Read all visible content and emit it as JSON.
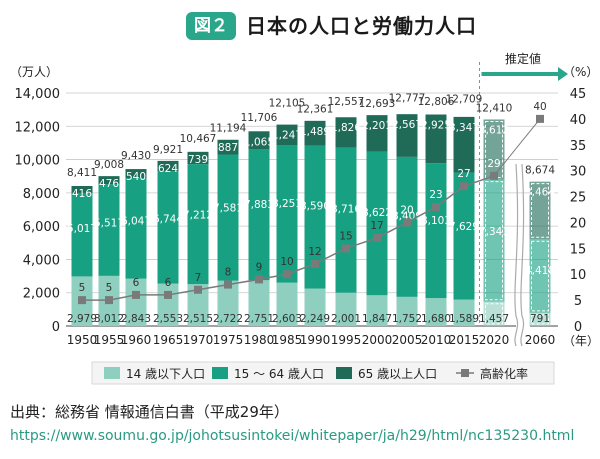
{
  "figure": {
    "badge": "図２",
    "title": "日本の人口と労働力人口"
  },
  "source": {
    "text": "出典：総務省 情報通信白書（平成29年）",
    "url": "https://www.soumu.go.jp/johotsusintokei/whitepaper/ja/h29/html/nc135230.html"
  },
  "colors": {
    "age0_14": "#8ecfbf",
    "age15_64": "#18a082",
    "age65plus": "#1f6b58",
    "aging_rate": "#7a7a7a",
    "estimate_arrow": "#2aa68a",
    "estimate_line": "#36b89b"
  },
  "chart_data": {
    "type": "bar",
    "stacked": true,
    "categories": [
      "1950",
      "1955",
      "1960",
      "1965",
      "1970",
      "1975",
      "1980",
      "1985",
      "1990",
      "1995",
      "2000",
      "2005",
      "2010",
      "2015",
      "2020",
      "2060"
    ],
    "left_axis": {
      "unit_label": "（万人）",
      "ylim": [
        0,
        14000
      ],
      "ticks": [
        "0",
        "2,000",
        "4,000",
        "6,000",
        "8,000",
        "10,000",
        "12,000",
        "14,000"
      ]
    },
    "right_axis": {
      "unit_label": "（%）",
      "ylim": [
        0,
        45
      ],
      "ticks": [
        "0",
        "5",
        "10",
        "15",
        "20",
        "25",
        "30",
        "35",
        "40",
        "45"
      ]
    },
    "x_unit_label": "（年）",
    "estimate_label": "推定値",
    "estimate_categories": [
      "2020",
      "2060"
    ],
    "series": [
      {
        "name": "14 歳以下人口",
        "values": [
          2979,
          3012,
          2843,
          2553,
          2515,
          2722,
          2751,
          2603,
          2249,
          2001,
          1847,
          1752,
          1680,
          1589,
          1457,
          791
        ],
        "labels": [
          "2,979",
          "3,012",
          "2,843",
          "2,553",
          "2,515",
          "2,722",
          "2,751",
          "2,603",
          "2,249",
          "2,001",
          "1,847",
          "1,752",
          "1,680",
          "1,589",
          "1,457",
          "791"
        ]
      },
      {
        "name": "15 ～ 64 歳人口",
        "values": [
          5017,
          5517,
          6047,
          6744,
          7212,
          7581,
          7883,
          8251,
          8590,
          8716,
          8622,
          8409,
          8103,
          7629,
          7341,
          4418
        ],
        "labels": [
          "5,017",
          "5,517",
          "6,047",
          "6,744",
          "7,212",
          "7,581",
          "7,883",
          "8,251",
          "8,590",
          "8,716",
          "8,622",
          "8,409",
          "8,103",
          "7,629",
          "7,341",
          "4,418"
        ]
      },
      {
        "name": "65 歳以上人口",
        "values": [
          416,
          476,
          540,
          624,
          739,
          887,
          1065,
          1247,
          1489,
          1826,
          2201,
          2567,
          2925,
          3347,
          3612,
          3464
        ],
        "labels": [
          "416",
          "476",
          "540",
          "624",
          "739",
          "887",
          "1,065",
          "1,247",
          "1,489",
          "1,826",
          "2,201",
          "2,567",
          "2,925",
          "3,347",
          "3,612",
          "3,464"
        ]
      },
      {
        "name": "高齢化率",
        "type": "line",
        "axis": "right",
        "values": [
          5,
          5,
          6,
          6,
          7,
          8,
          9,
          10,
          12,
          15,
          17,
          20,
          23,
          27,
          29,
          40
        ],
        "labels": [
          "5",
          "5",
          "6",
          "6",
          "7",
          "8",
          "9",
          "10",
          "12",
          "15",
          "17",
          "20",
          "23",
          "27",
          "29",
          "40"
        ]
      }
    ],
    "totals": {
      "values": [
        8411,
        9008,
        9430,
        9921,
        10467,
        11194,
        11706,
        12105,
        12361,
        12557,
        12693,
        12777,
        12806,
        12709,
        12410,
        8674
      ],
      "labels": [
        "8,411",
        "9,008",
        "9,430",
        "9,921",
        "10,467",
        "11,194",
        "11,706",
        "12,105",
        "12,361",
        "12,557",
        "12,693",
        "12,777",
        "12,806",
        "12,709",
        "12,410",
        "8,674"
      ]
    },
    "legend_position": "bottom",
    "grid": true
  }
}
